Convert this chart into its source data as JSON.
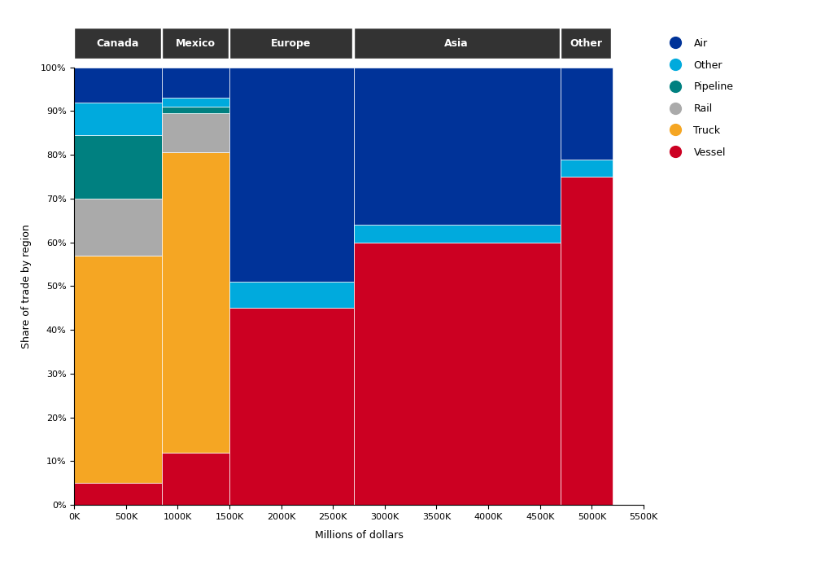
{
  "regions": [
    "Canada",
    "Mexico",
    "Europe",
    "Asia",
    "Other"
  ],
  "region_totals_K": [
    850,
    650,
    1200,
    2000,
    500
  ],
  "total_max_K": 5500,
  "colors": {
    "Air": "#003399",
    "Other": "#00AADD",
    "Pipeline": "#008080",
    "Rail": "#AAAAAA",
    "Truck": "#F5A623",
    "Vessel": "#CC0022"
  },
  "mode_shares": {
    "Canada": {
      "Vessel": 0.05,
      "Truck": 0.52,
      "Rail": 0.13,
      "Pipeline": 0.145,
      "Other": 0.075,
      "Air": 0.08
    },
    "Mexico": {
      "Vessel": 0.12,
      "Truck": 0.685,
      "Rail": 0.09,
      "Pipeline": 0.015,
      "Other": 0.02,
      "Air": 0.07
    },
    "Europe": {
      "Vessel": 0.45,
      "Truck": 0.0,
      "Rail": 0.0,
      "Pipeline": 0.0,
      "Other": 0.06,
      "Air": 0.49
    },
    "Asia": {
      "Vessel": 0.6,
      "Truck": 0.0,
      "Rail": 0.0,
      "Pipeline": 0.0,
      "Other": 0.04,
      "Air": 0.36
    },
    "Other": {
      "Vessel": 0.75,
      "Truck": 0.0,
      "Rail": 0.0,
      "Pipeline": 0.0,
      "Other": 0.04,
      "Air": 0.21
    }
  },
  "header_bg": "#333333",
  "header_fg": "#FFFFFF",
  "xlabel": "Millions of dollars",
  "ylabel": "Share of trade by region",
  "legend_entries": [
    "Air",
    "Other",
    "Pipeline",
    "Rail",
    "Truck",
    "Vessel"
  ],
  "ytick_labels": [
    "0%",
    "10%",
    "20%",
    "30%",
    "40%",
    "50%",
    "60%",
    "70%",
    "80%",
    "90%",
    "100%"
  ],
  "xtick_values": [
    0,
    500,
    1000,
    1500,
    2000,
    2500,
    3000,
    3500,
    4000,
    4500,
    5000,
    5500
  ],
  "figsize": [
    10.14,
    6.89
  ],
  "dpi": 100
}
